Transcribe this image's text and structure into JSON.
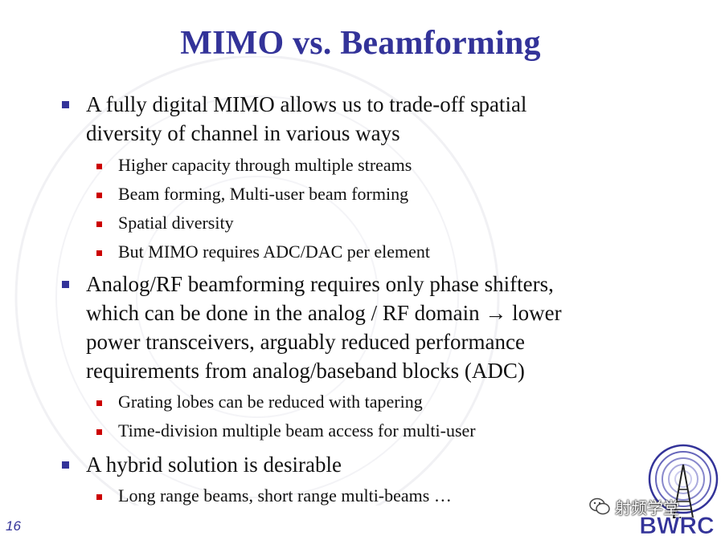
{
  "slide": {
    "title": "MIMO vs. Beamforming",
    "page_number": "16"
  },
  "bullets": [
    {
      "lines": [
        "A fully digital MIMO allows us to trade-off spatial",
        "diversity of channel in various ways"
      ],
      "sub": [
        "Higher capacity through multiple streams",
        "Beam forming, Multi-user beam forming",
        "Spatial diversity",
        "But MIMO requires ADC/DAC per element"
      ]
    },
    {
      "lines": [
        "Analog/RF beamforming requires only phase shifters,",
        "which can be done in the analog / RF domain → lower",
        "power transceivers, arguably reduced performance",
        "requirements from analog/baseband blocks (ADC)"
      ],
      "sub": [
        "Grating lobes can be reduced with tapering",
        "Time-division multiple beam access for multi-user"
      ]
    },
    {
      "lines": [
        "A hybrid solution is desirable"
      ],
      "sub": [
        "Long range beams, short range multi-beams …"
      ]
    }
  ],
  "logo": {
    "text": "BWRC"
  },
  "wechat_overlay": {
    "text": "射频学堂"
  },
  "colors": {
    "title": "#333399",
    "bullet_l1": "#333399",
    "bullet_l2": "#cc0000"
  }
}
